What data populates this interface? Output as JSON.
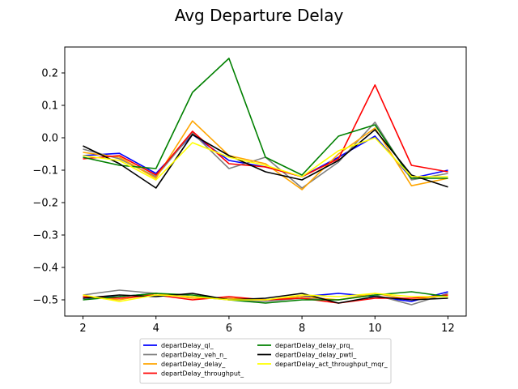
{
  "chart_data": {
    "type": "line",
    "title": "Avg Departure Delay",
    "xlabel": "",
    "ylabel": "",
    "x": [
      2,
      3,
      4,
      5,
      6,
      7,
      8,
      9,
      10,
      11,
      12
    ],
    "xlim": [
      1.5,
      12.5
    ],
    "ylim": [
      -0.55,
      0.28
    ],
    "xticks": [
      2,
      4,
      6,
      8,
      10,
      12
    ],
    "yticks": [
      0.2,
      0.1,
      0.0,
      -0.1,
      -0.2,
      -0.3,
      -0.4,
      -0.5
    ],
    "ytick_labels": [
      "0.2",
      "0.1",
      "0.0",
      "−0.1",
      "−0.2",
      "−0.3",
      "−0.4",
      "−0.5"
    ],
    "grid": false,
    "legend_placement": "below",
    "series": [
      {
        "name": "departDelay_ql_",
        "color": "#0000ff",
        "values": [
          -0.055,
          -0.048,
          -0.11,
          0.01,
          -0.07,
          -0.09,
          -0.12,
          -0.06,
          0.005,
          -0.125,
          -0.1
        ]
      },
      {
        "name": "departDelay_veh_n_",
        "color": "#808080",
        "values": [
          -0.035,
          -0.065,
          -0.12,
          0.015,
          -0.095,
          -0.06,
          -0.155,
          -0.075,
          0.048,
          -0.13,
          -0.11
        ]
      },
      {
        "name": "departDelay_delay_",
        "color": "#ffa500",
        "values": [
          -0.045,
          -0.06,
          -0.125,
          0.052,
          -0.055,
          -0.08,
          -0.16,
          -0.05,
          0.03,
          -0.148,
          -0.125
        ]
      },
      {
        "name": "departDelay_throughput_",
        "color": "#ff0000",
        "values": [
          -0.065,
          -0.055,
          -0.115,
          0.02,
          -0.08,
          -0.09,
          -0.12,
          -0.065,
          0.163,
          -0.085,
          -0.105
        ]
      },
      {
        "name": "departDelay_delay_prq_",
        "color": "#008000",
        "values": [
          -0.06,
          -0.085,
          -0.095,
          0.14,
          0.245,
          -0.06,
          -0.115,
          0.005,
          0.04,
          -0.125,
          -0.125
        ]
      },
      {
        "name": "departDelay_delay_pwtl_",
        "color": "#000000",
        "values": [
          -0.025,
          -0.08,
          -0.155,
          0.01,
          -0.055,
          -0.105,
          -0.13,
          -0.07,
          0.025,
          -0.115,
          -0.152
        ]
      },
      {
        "name": "departDelay_act_throughput_mqr_",
        "color": "#ffff00",
        "values": [
          -0.055,
          -0.07,
          -0.13,
          -0.015,
          -0.06,
          -0.085,
          -0.12,
          -0.04,
          0.0,
          -0.12,
          -0.12
        ]
      },
      {
        "name": "",
        "color": "#0000ff",
        "values": [
          -0.495,
          -0.49,
          -0.48,
          -0.49,
          -0.495,
          -0.5,
          -0.49,
          -0.48,
          -0.49,
          -0.505,
          -0.475
        ]
      },
      {
        "name": "",
        "color": "#808080",
        "values": [
          -0.485,
          -0.47,
          -0.48,
          -0.49,
          -0.5,
          -0.505,
          -0.495,
          -0.5,
          -0.485,
          -0.515,
          -0.48
        ]
      },
      {
        "name": "",
        "color": "#ffa500",
        "values": [
          -0.49,
          -0.5,
          -0.48,
          -0.495,
          -0.495,
          -0.5,
          -0.49,
          -0.5,
          -0.48,
          -0.5,
          -0.485
        ]
      },
      {
        "name": "",
        "color": "#ff0000",
        "values": [
          -0.49,
          -0.495,
          -0.485,
          -0.5,
          -0.49,
          -0.5,
          -0.495,
          -0.51,
          -0.495,
          -0.495,
          -0.485
        ]
      },
      {
        "name": "",
        "color": "#008000",
        "values": [
          -0.5,
          -0.49,
          -0.48,
          -0.485,
          -0.5,
          -0.51,
          -0.5,
          -0.5,
          -0.485,
          -0.475,
          -0.49
        ]
      },
      {
        "name": "",
        "color": "#000000",
        "values": [
          -0.495,
          -0.485,
          -0.49,
          -0.48,
          -0.5,
          -0.495,
          -0.48,
          -0.51,
          -0.49,
          -0.5,
          -0.495
        ]
      },
      {
        "name": "",
        "color": "#ffff00",
        "values": [
          -0.485,
          -0.505,
          -0.485,
          -0.49,
          -0.5,
          -0.5,
          -0.485,
          -0.49,
          -0.48,
          -0.49,
          -0.49
        ]
      }
    ]
  }
}
